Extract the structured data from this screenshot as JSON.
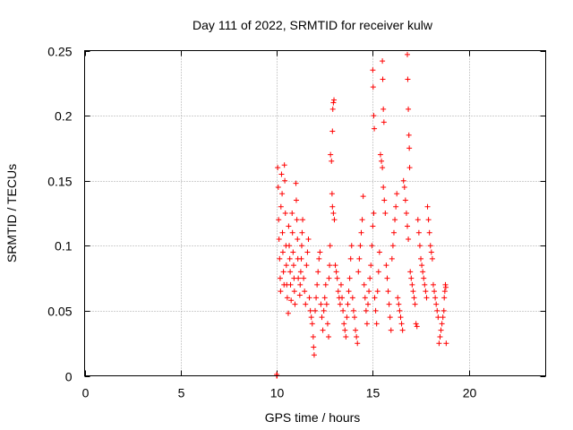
{
  "chart_data": {
    "type": "scatter",
    "title": "Day 111 of 2022, SRMTID for receiver kulw",
    "xlabel": "GPS time / hours",
    "ylabel": "SRMTID / TECUs",
    "xlim": [
      0,
      24
    ],
    "ylim": [
      0,
      0.25
    ],
    "xticks": [
      0,
      5,
      10,
      15,
      20
    ],
    "yticks": [
      0,
      0.05,
      0.1,
      0.15,
      0.2,
      0.25
    ],
    "xtick_labels": [
      "0",
      "5",
      "10",
      "15",
      "20"
    ],
    "ytick_labels": [
      "0",
      "0.05",
      "0.1",
      "0.15",
      "0.2",
      "0.25"
    ],
    "grid": true,
    "marker": "+",
    "color": "#ff0000",
    "series": [
      {
        "name": "SRMTID",
        "points": [
          [
            10.0,
            0.0
          ],
          [
            10.0,
            0.001
          ],
          [
            10.02,
            0.0
          ],
          [
            10.05,
            0.16
          ],
          [
            10.08,
            0.145
          ],
          [
            10.1,
            0.12
          ],
          [
            10.12,
            0.105
          ],
          [
            10.15,
            0.09
          ],
          [
            10.18,
            0.075
          ],
          [
            10.2,
            0.065
          ],
          [
            10.22,
            0.13
          ],
          [
            10.25,
            0.155
          ],
          [
            10.28,
            0.14
          ],
          [
            10.3,
            0.11
          ],
          [
            10.32,
            0.095
          ],
          [
            10.35,
            0.08
          ],
          [
            10.38,
            0.07
          ],
          [
            10.4,
            0.162
          ],
          [
            10.42,
            0.15
          ],
          [
            10.45,
            0.125
          ],
          [
            10.48,
            0.1
          ],
          [
            10.5,
            0.085
          ],
          [
            10.52,
            0.07
          ],
          [
            10.55,
            0.06
          ],
          [
            10.6,
            0.048
          ],
          [
            10.62,
            0.115
          ],
          [
            10.65,
            0.1
          ],
          [
            10.68,
            0.09
          ],
          [
            10.7,
            0.08
          ],
          [
            10.72,
            0.07
          ],
          [
            10.75,
            0.058
          ],
          [
            10.8,
            0.125
          ],
          [
            10.82,
            0.11
          ],
          [
            10.85,
            0.095
          ],
          [
            10.88,
            0.085
          ],
          [
            10.9,
            0.075
          ],
          [
            10.92,
            0.065
          ],
          [
            10.95,
            0.055
          ],
          [
            11.0,
            0.148
          ],
          [
            11.02,
            0.135
          ],
          [
            11.05,
            0.12
          ],
          [
            11.08,
            0.105
          ],
          [
            11.1,
            0.09
          ],
          [
            11.12,
            0.075
          ],
          [
            11.2,
            0.062
          ],
          [
            11.22,
            0.07
          ],
          [
            11.25,
            0.08
          ],
          [
            11.28,
            0.09
          ],
          [
            11.3,
            0.1
          ],
          [
            11.32,
            0.11
          ],
          [
            11.35,
            0.12
          ],
          [
            11.4,
            0.075
          ],
          [
            11.45,
            0.065
          ],
          [
            11.5,
            0.055
          ],
          [
            11.55,
            0.085
          ],
          [
            11.6,
            0.095
          ],
          [
            11.65,
            0.105
          ],
          [
            11.7,
            0.06
          ],
          [
            11.75,
            0.05
          ],
          [
            11.8,
            0.045
          ],
          [
            11.85,
            0.04
          ],
          [
            11.9,
            0.03
          ],
          [
            11.92,
            0.022
          ],
          [
            11.95,
            0.016
          ],
          [
            12.0,
            0.05
          ],
          [
            12.05,
            0.06
          ],
          [
            12.1,
            0.07
          ],
          [
            12.15,
            0.08
          ],
          [
            12.2,
            0.09
          ],
          [
            12.25,
            0.095
          ],
          [
            12.3,
            0.055
          ],
          [
            12.35,
            0.045
          ],
          [
            12.4,
            0.035
          ],
          [
            12.45,
            0.05
          ],
          [
            12.5,
            0.06
          ],
          [
            12.55,
            0.07
          ],
          [
            12.6,
            0.055
          ],
          [
            12.65,
            0.04
          ],
          [
            12.7,
            0.03
          ],
          [
            12.72,
            0.075
          ],
          [
            12.75,
            0.085
          ],
          [
            12.78,
            0.1
          ],
          [
            12.8,
            0.17
          ],
          [
            12.85,
            0.165
          ],
          [
            12.88,
            0.14
          ],
          [
            12.9,
            0.13
          ],
          [
            12.95,
            0.125
          ],
          [
            13.0,
            0.12
          ],
          [
            12.9,
            0.188
          ],
          [
            12.92,
            0.205
          ],
          [
            12.95,
            0.21
          ],
          [
            12.98,
            0.212
          ],
          [
            13.05,
            0.085
          ],
          [
            13.1,
            0.08
          ],
          [
            13.15,
            0.075
          ],
          [
            13.2,
            0.065
          ],
          [
            13.25,
            0.06
          ],
          [
            13.3,
            0.055
          ],
          [
            13.35,
            0.07
          ],
          [
            13.4,
            0.06
          ],
          [
            13.45,
            0.05
          ],
          [
            13.5,
            0.04
          ],
          [
            13.55,
            0.035
          ],
          [
            13.6,
            0.03
          ],
          [
            13.65,
            0.045
          ],
          [
            13.7,
            0.055
          ],
          [
            13.75,
            0.065
          ],
          [
            13.8,
            0.075
          ],
          [
            13.85,
            0.09
          ],
          [
            13.9,
            0.1
          ],
          [
            13.95,
            0.06
          ],
          [
            14.0,
            0.05
          ],
          [
            14.05,
            0.045
          ],
          [
            14.1,
            0.035
          ],
          [
            14.15,
            0.03
          ],
          [
            14.2,
            0.025
          ],
          [
            14.25,
            0.08
          ],
          [
            14.3,
            0.09
          ],
          [
            14.35,
            0.1
          ],
          [
            14.4,
            0.11
          ],
          [
            14.45,
            0.12
          ],
          [
            14.5,
            0.138
          ],
          [
            14.55,
            0.07
          ],
          [
            14.6,
            0.06
          ],
          [
            14.65,
            0.05
          ],
          [
            14.7,
            0.04
          ],
          [
            14.75,
            0.055
          ],
          [
            14.8,
            0.065
          ],
          [
            14.85,
            0.075
          ],
          [
            14.9,
            0.085
          ],
          [
            14.95,
            0.1
          ],
          [
            15.0,
            0.115
          ],
          [
            15.05,
            0.125
          ],
          [
            15.0,
            0.235
          ],
          [
            15.02,
            0.222
          ],
          [
            15.05,
            0.2
          ],
          [
            15.08,
            0.19
          ],
          [
            15.1,
            0.06
          ],
          [
            15.15,
            0.05
          ],
          [
            15.2,
            0.04
          ],
          [
            15.25,
            0.065
          ],
          [
            15.3,
            0.08
          ],
          [
            15.35,
            0.095
          ],
          [
            15.4,
            0.17
          ],
          [
            15.45,
            0.165
          ],
          [
            15.5,
            0.16
          ],
          [
            15.55,
            0.145
          ],
          [
            15.6,
            0.135
          ],
          [
            15.65,
            0.125
          ],
          [
            15.5,
            0.242
          ],
          [
            15.52,
            0.228
          ],
          [
            15.55,
            0.205
          ],
          [
            15.58,
            0.195
          ],
          [
            15.7,
            0.085
          ],
          [
            15.75,
            0.075
          ],
          [
            15.8,
            0.065
          ],
          [
            15.85,
            0.055
          ],
          [
            15.9,
            0.045
          ],
          [
            15.95,
            0.035
          ],
          [
            16.0,
            0.09
          ],
          [
            16.05,
            0.1
          ],
          [
            16.1,
            0.11
          ],
          [
            16.15,
            0.12
          ],
          [
            16.2,
            0.13
          ],
          [
            16.25,
            0.14
          ],
          [
            16.3,
            0.06
          ],
          [
            16.35,
            0.055
          ],
          [
            16.4,
            0.05
          ],
          [
            16.45,
            0.045
          ],
          [
            16.5,
            0.04
          ],
          [
            16.55,
            0.035
          ],
          [
            16.6,
            0.15
          ],
          [
            16.65,
            0.145
          ],
          [
            16.7,
            0.135
          ],
          [
            16.75,
            0.125
          ],
          [
            16.8,
            0.115
          ],
          [
            16.85,
            0.105
          ],
          [
            16.8,
            0.247
          ],
          [
            16.82,
            0.228
          ],
          [
            16.85,
            0.205
          ],
          [
            16.88,
            0.185
          ],
          [
            16.9,
            0.175
          ],
          [
            16.92,
            0.16
          ],
          [
            16.95,
            0.08
          ],
          [
            17.0,
            0.075
          ],
          [
            17.05,
            0.07
          ],
          [
            17.1,
            0.065
          ],
          [
            17.15,
            0.06
          ],
          [
            17.2,
            0.055
          ],
          [
            17.25,
            0.04
          ],
          [
            17.3,
            0.038
          ],
          [
            17.35,
            0.12
          ],
          [
            17.4,
            0.11
          ],
          [
            17.45,
            0.1
          ],
          [
            17.5,
            0.09
          ],
          [
            17.55,
            0.085
          ],
          [
            17.6,
            0.08
          ],
          [
            17.65,
            0.075
          ],
          [
            17.7,
            0.07
          ],
          [
            17.75,
            0.065
          ],
          [
            17.8,
            0.06
          ],
          [
            17.85,
            0.13
          ],
          [
            17.9,
            0.12
          ],
          [
            17.95,
            0.11
          ],
          [
            18.0,
            0.1
          ],
          [
            18.05,
            0.095
          ],
          [
            18.1,
            0.09
          ],
          [
            18.15,
            0.07
          ],
          [
            18.2,
            0.065
          ],
          [
            18.25,
            0.06
          ],
          [
            18.3,
            0.055
          ],
          [
            18.35,
            0.05
          ],
          [
            18.4,
            0.045
          ],
          [
            18.45,
            0.025
          ],
          [
            18.5,
            0.03
          ],
          [
            18.55,
            0.035
          ],
          [
            18.6,
            0.04
          ],
          [
            18.65,
            0.045
          ],
          [
            18.7,
            0.05
          ],
          [
            18.72,
            0.06
          ],
          [
            18.75,
            0.065
          ],
          [
            18.78,
            0.07
          ],
          [
            18.8,
            0.068
          ],
          [
            18.82,
            0.025
          ]
        ]
      }
    ]
  }
}
